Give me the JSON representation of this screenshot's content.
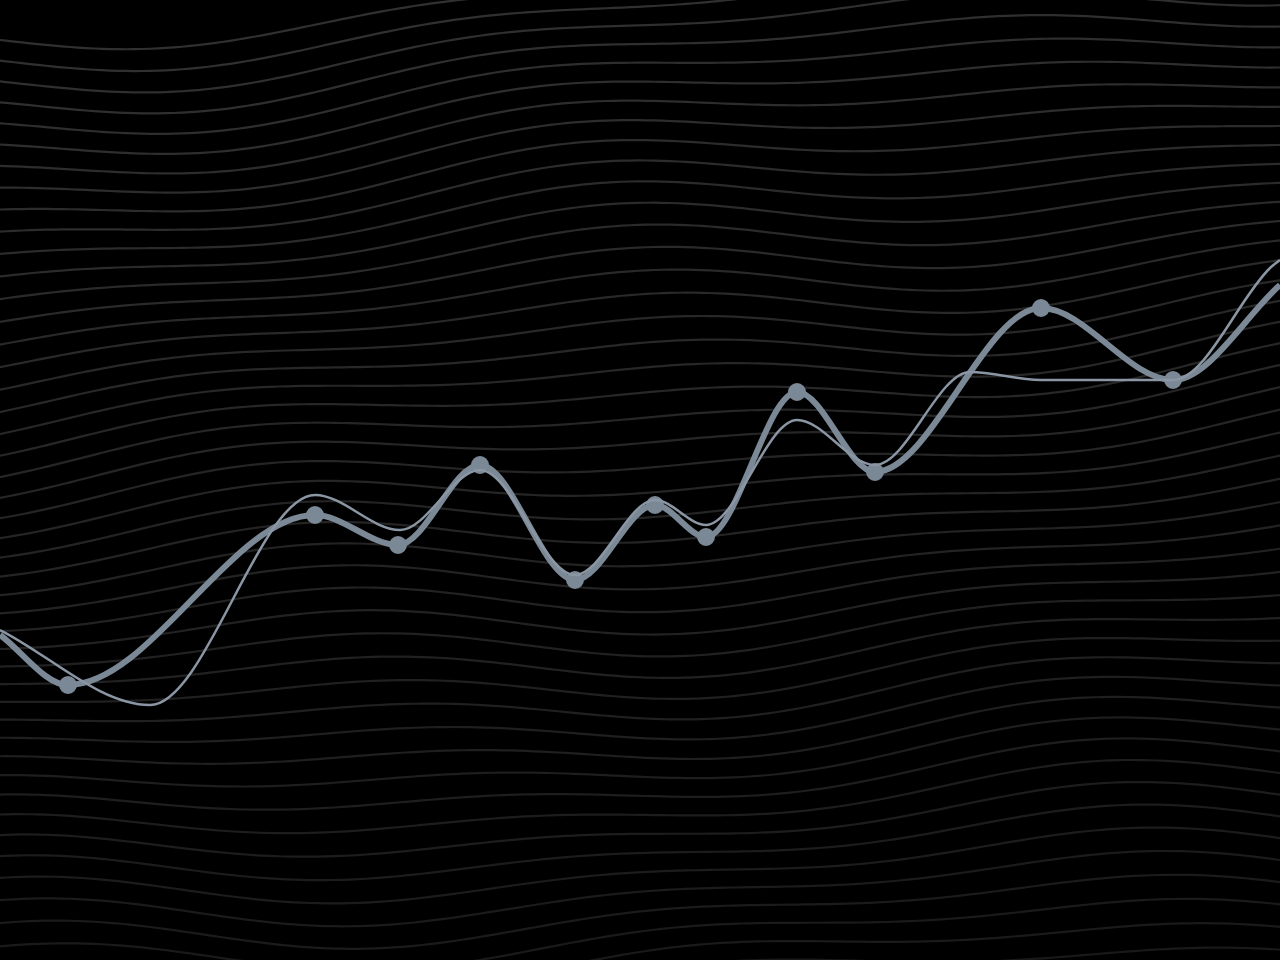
{
  "chart_data": {
    "type": "line",
    "xlim": [
      0,
      128
    ],
    "ylim": [
      0,
      96
    ],
    "tick_labels": false,
    "grid": false,
    "series": [
      {
        "color": "#7b8896",
        "marker": "circle",
        "line_style": "solid",
        "x": [
          0,
          6.8,
          31.5,
          39.8,
          48.0,
          57.5,
          65.5,
          70.6,
          79.7,
          87.5,
          104.1,
          117.3,
          128
        ],
        "values": [
          32.5,
          27.5,
          44.5,
          41.5,
          49.5,
          38.0,
          45.5,
          42.3,
          56.8,
          48.8,
          65.2,
          58.0,
          67.5
        ]
      },
      {
        "color": "#8a96a3",
        "marker": "none",
        "line_style": "solid",
        "x": [
          0,
          15.0,
          31.5,
          40.0,
          48.0,
          57.5,
          65.5,
          70.6,
          79.7,
          87.5,
          97.0,
          104.1,
          117.3,
          127.0,
          128
        ],
        "values": [
          33.0,
          25.5,
          46.5,
          43.0,
          49.0,
          38.5,
          46.0,
          43.5,
          54.0,
          49.5,
          58.8,
          58.0,
          58.0,
          69.2,
          70.0
        ]
      }
    ]
  }
}
